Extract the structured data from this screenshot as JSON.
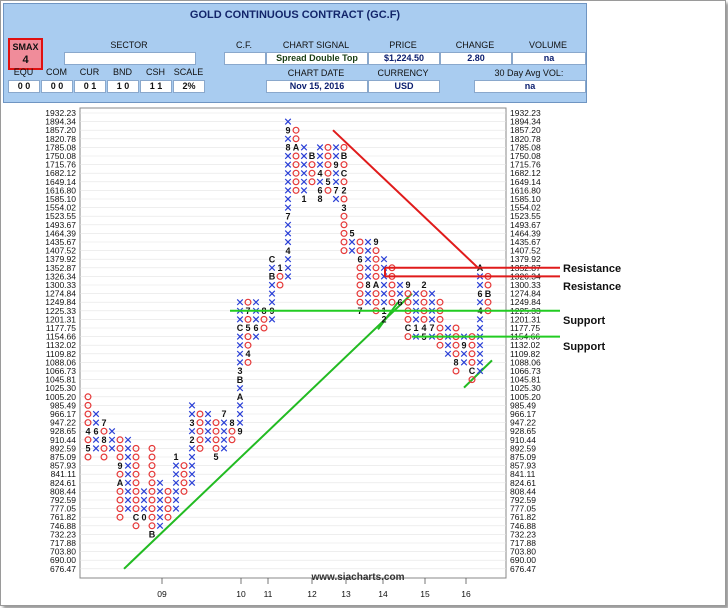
{
  "header": {
    "title": "GOLD CONTINUOUS CONTRACT (GC.F)",
    "smax_label": "SMAX",
    "smax_value": "4",
    "sector_label": "SECTOR",
    "cf_label": "C.F.",
    "chart_signal_label": "CHART SIGNAL",
    "chart_signal_value": "Spread Double Top",
    "price_label": "PRICE",
    "price_value": "$1,224.50",
    "change_label": "CHANGE",
    "change_value": "2.80",
    "volume_label": "VOLUME",
    "volume_value": "na",
    "chart_date_label": "CHART DATE",
    "chart_date_value": "Nov 15, 2016",
    "currency_label": "CURRENCY",
    "currency_value": "USD",
    "avg_vol_label": "30 Day Avg VOL:",
    "avg_vol_value": "na",
    "asset_classes": [
      {
        "label": "EQU",
        "value": "0 0"
      },
      {
        "label": "COM",
        "value": "0 0"
      },
      {
        "label": "CUR",
        "value": "0 1"
      },
      {
        "label": "BND",
        "value": "1 0"
      },
      {
        "label": "CSH",
        "value": "1 1"
      },
      {
        "label": "SCALE",
        "value": "2%"
      }
    ]
  },
  "chart_data": {
    "type": "point-and-figure",
    "title": "GOLD CONTINUOUS CONTRACT (GC.F)",
    "box_size": "2%",
    "price_levels": [
      1932.23,
      1894.34,
      1857.2,
      1820.78,
      1785.08,
      1750.08,
      1715.76,
      1682.12,
      1649.14,
      1616.8,
      1585.1,
      1554.02,
      1523.55,
      1493.67,
      1464.39,
      1435.67,
      1407.52,
      1379.92,
      1352.87,
      1326.34,
      1300.33,
      1274.84,
      1249.84,
      1225.33,
      1201.31,
      1177.75,
      1154.66,
      1132.02,
      1109.82,
      1088.06,
      1066.73,
      1045.81,
      1025.3,
      1005.2,
      985.49,
      966.17,
      947.22,
      928.65,
      910.44,
      892.59,
      875.09,
      857.93,
      841.11,
      824.61,
      808.44,
      792.59,
      777.05,
      761.82,
      746.88,
      732.23,
      717.88,
      703.8,
      690.0,
      676.47
    ],
    "year_labels": [
      "09",
      "10",
      "11",
      "12",
      "13",
      "14",
      "15",
      "16"
    ],
    "columns": [
      {
        "type": "O",
        "high": 1005.2,
        "low": 875.09,
        "labels": [
          {
            "p": 928.65,
            "t": "4"
          },
          {
            "p": 892.59,
            "t": "5"
          }
        ]
      },
      {
        "type": "X",
        "high": 966.17,
        "low": 892.59,
        "labels": [
          {
            "p": 928.65,
            "t": "6"
          }
        ]
      },
      {
        "type": "O",
        "high": 947.22,
        "low": 875.09,
        "labels": [
          {
            "p": 947.22,
            "t": "7"
          },
          {
            "p": 910.44,
            "t": "8"
          }
        ]
      },
      {
        "type": "X",
        "high": 928.65,
        "low": 892.59,
        "labels": []
      },
      {
        "type": "O",
        "high": 910.44,
        "low": 761.82,
        "labels": [
          {
            "p": 857.93,
            "t": "9"
          },
          {
            "p": 824.61,
            "t": "A"
          }
        ]
      },
      {
        "type": "X",
        "high": 910.44,
        "low": 777.05,
        "labels": []
      },
      {
        "type": "O",
        "high": 892.59,
        "low": 746.88,
        "labels": [
          {
            "p": 761.82,
            "t": "C"
          }
        ]
      },
      {
        "type": "X",
        "high": 808.44,
        "low": 761.82,
        "labels": [
          {
            "p": 761.82,
            "t": "0"
          }
        ]
      },
      {
        "type": "O",
        "high": 892.59,
        "low": 732.23,
        "labels": [
          {
            "p": 732.23,
            "t": "B"
          }
        ]
      },
      {
        "type": "X",
        "high": 824.61,
        "low": 746.88,
        "labels": []
      },
      {
        "type": "O",
        "high": 808.44,
        "low": 761.82,
        "labels": []
      },
      {
        "type": "X",
        "high": 875.09,
        "low": 777.05,
        "labels": [
          {
            "p": 875.09,
            "t": "1"
          }
        ]
      },
      {
        "type": "O",
        "high": 857.93,
        "low": 808.44,
        "labels": []
      },
      {
        "type": "X",
        "high": 985.49,
        "low": 824.61,
        "labels": [
          {
            "p": 947.22,
            "t": "3"
          },
          {
            "p": 910.44,
            "t": "2"
          }
        ]
      },
      {
        "type": "O",
        "high": 966.17,
        "low": 892.59,
        "labels": []
      },
      {
        "type": "X",
        "high": 966.17,
        "low": 910.44,
        "labels": []
      },
      {
        "type": "O",
        "high": 947.22,
        "low": 875.09,
        "labels": [
          {
            "p": 875.09,
            "t": "5"
          }
        ]
      },
      {
        "type": "X",
        "high": 966.17,
        "low": 892.59,
        "labels": [
          {
            "p": 966.17,
            "t": "7"
          }
        ]
      },
      {
        "type": "O",
        "high": 947.22,
        "low": 910.44,
        "labels": [
          {
            "p": 947.22,
            "t": "8"
          }
        ]
      },
      {
        "type": "X",
        "high": 1249.84,
        "low": 928.65,
        "labels": [
          {
            "p": 1045.81,
            "t": "B"
          },
          {
            "p": 1066.73,
            "t": "3"
          },
          {
            "p": 1177.75,
            "t": "C"
          },
          {
            "p": 1005.2,
            "t": "A"
          },
          {
            "p": 928.65,
            "t": "9"
          }
        ]
      },
      {
        "type": "O",
        "high": 1249.84,
        "low": 1088.06,
        "labels": [
          {
            "p": 1177.75,
            "t": "5"
          },
          {
            "p": 1109.82,
            "t": "4"
          },
          {
            "p": 1225.33,
            "t": "7"
          }
        ]
      },
      {
        "type": "X",
        "high": 1249.84,
        "low": 1154.66,
        "labels": [
          {
            "p": 1177.75,
            "t": "6"
          }
        ]
      },
      {
        "type": "O",
        "high": 1225.33,
        "low": 1177.75,
        "labels": [
          {
            "p": 1225.33,
            "t": "8"
          }
        ]
      },
      {
        "type": "X",
        "high": 1379.92,
        "low": 1201.31,
        "labels": [
          {
            "p": 1379.92,
            "t": "C"
          },
          {
            "p": 1326.34,
            "t": "B"
          },
          {
            "p": 1225.33,
            "t": "9"
          }
        ]
      },
      {
        "type": "O",
        "high": 1352.87,
        "low": 1300.33,
        "labels": [
          {
            "p": 1352.87,
            "t": "1"
          }
        ]
      },
      {
        "type": "X",
        "high": 1894.34,
        "low": 1326.34,
        "labels": [
          {
            "p": 1407.52,
            "t": "4"
          },
          {
            "p": 1523.55,
            "t": "7"
          },
          {
            "p": 1785.08,
            "t": "8"
          },
          {
            "p": 1857.2,
            "t": "9"
          }
        ]
      },
      {
        "type": "O",
        "high": 1857.2,
        "low": 1616.8,
        "labels": [
          {
            "p": 1785.08,
            "t": "A"
          }
        ]
      },
      {
        "type": "X",
        "high": 1785.08,
        "low": 1585.1,
        "labels": [
          {
            "p": 1585.1,
            "t": "1"
          }
        ]
      },
      {
        "type": "O",
        "high": 1750.08,
        "low": 1649.14,
        "labels": [
          {
            "p": 1750.08,
            "t": "B"
          }
        ]
      },
      {
        "type": "X",
        "high": 1785.08,
        "low": 1585.1,
        "labels": [
          {
            "p": 1682.12,
            "t": "4"
          },
          {
            "p": 1616.8,
            "t": "6"
          },
          {
            "p": 1585.1,
            "t": "8"
          }
        ]
      },
      {
        "type": "O",
        "high": 1785.08,
        "low": 1616.8,
        "labels": [
          {
            "p": 1649.14,
            "t": "5"
          }
        ]
      },
      {
        "type": "X",
        "high": 1785.08,
        "low": 1585.1,
        "labels": [
          {
            "p": 1715.76,
            "t": "9"
          },
          {
            "p": 1616.8,
            "t": "7"
          }
        ]
      },
      {
        "type": "O",
        "high": 1785.08,
        "low": 1407.52,
        "labels": [
          {
            "p": 1750.08,
            "t": "B"
          },
          {
            "p": 1682.12,
            "t": "C"
          },
          {
            "p": 1616.8,
            "t": "2"
          },
          {
            "p": 1554.02,
            "t": "3"
          }
        ]
      },
      {
        "type": "X",
        "high": 1464.39,
        "low": 1407.52,
        "labels": [
          {
            "p": 1464.39,
            "t": "5"
          }
        ]
      },
      {
        "type": "O",
        "high": 1435.67,
        "low": 1225.33,
        "labels": [
          {
            "p": 1379.92,
            "t": "6"
          },
          {
            "p": 1225.33,
            "t": "7"
          }
        ]
      },
      {
        "type": "X",
        "high": 1435.67,
        "low": 1249.84,
        "labels": [
          {
            "p": 1300.33,
            "t": "8"
          }
        ]
      },
      {
        "type": "O",
        "high": 1435.67,
        "low": 1225.33,
        "labels": [
          {
            "p": 1435.67,
            "t": "9"
          },
          {
            "p": 1300.33,
            "t": "A"
          }
        ]
      },
      {
        "type": "X",
        "high": 1379.92,
        "low": 1201.31,
        "labels": [
          {
            "p": 1225.33,
            "t": "1"
          },
          {
            "p": 1201.31,
            "t": "2"
          }
        ]
      },
      {
        "type": "O",
        "high": 1352.87,
        "low": 1249.84,
        "labels": []
      },
      {
        "type": "X",
        "high": 1300.33,
        "low": 1249.84,
        "labels": [
          {
            "p": 1249.84,
            "t": "6"
          }
        ]
      },
      {
        "type": "O",
        "high": 1300.33,
        "low": 1154.66,
        "labels": [
          {
            "p": 1300.33,
            "t": "9"
          },
          {
            "p": 1177.75,
            "t": "C"
          }
        ]
      },
      {
        "type": "X",
        "high": 1274.84,
        "low": 1154.66,
        "labels": [
          {
            "p": 1177.75,
            "t": "1"
          }
        ]
      },
      {
        "type": "O",
        "high": 1300.33,
        "low": 1154.66,
        "labels": [
          {
            "p": 1300.33,
            "t": "2"
          },
          {
            "p": 1177.75,
            "t": "4"
          },
          {
            "p": 1154.66,
            "t": "5"
          }
        ]
      },
      {
        "type": "X",
        "high": 1274.84,
        "low": 1154.66,
        "labels": [
          {
            "p": 1177.75,
            "t": "7"
          }
        ]
      },
      {
        "type": "O",
        "high": 1249.84,
        "low": 1132.02,
        "labels": []
      },
      {
        "type": "X",
        "high": 1177.75,
        "low": 1109.82,
        "labels": []
      },
      {
        "type": "O",
        "high": 1177.75,
        "low": 1066.73,
        "labels": [
          {
            "p": 1088.06,
            "t": "8"
          }
        ]
      },
      {
        "type": "X",
        "high": 1154.66,
        "low": 1088.06,
        "labels": [
          {
            "p": 1132.02,
            "t": "9"
          }
        ]
      },
      {
        "type": "O",
        "high": 1154.66,
        "low": 1045.81,
        "labels": [
          {
            "p": 1066.73,
            "t": "C"
          }
        ]
      },
      {
        "type": "X",
        "high": 1352.87,
        "low": 1066.73,
        "labels": [
          {
            "p": 1352.87,
            "t": "A"
          },
          {
            "p": 1274.84,
            "t": "6"
          },
          {
            "p": 1225.33,
            "t": "4"
          }
        ]
      },
      {
        "type": "O",
        "high": 1326.34,
        "low": 1225.33,
        "labels": [
          {
            "p": 1274.84,
            "t": "B"
          }
        ]
      }
    ],
    "annotations": [
      {
        "label": "Resistance",
        "level": 1352.87
      },
      {
        "label": "Resistance",
        "level": 1326.34
      },
      {
        "label": "Support",
        "level": 1225.33
      },
      {
        "label": "Support",
        "level": 1154.66
      }
    ],
    "trendlines": [
      {
        "kind": "downtrend",
        "color": "#e01b1b",
        "from_price": 1857.2,
        "to_price": 1352.87
      },
      {
        "kind": "uptrend",
        "color": "#22bb22",
        "from_price": 676.47,
        "to_price": 1274.84
      },
      {
        "kind": "uptrend",
        "color": "#22bb22",
        "from_price": 1045.81,
        "to_price": 1088.06
      }
    ],
    "watermark": "www.siacharts.com",
    "colors": {
      "x": "#2a3fd6",
      "o": "#e53838",
      "resistance": "#e01b1b",
      "support": "#22cc22"
    }
  }
}
